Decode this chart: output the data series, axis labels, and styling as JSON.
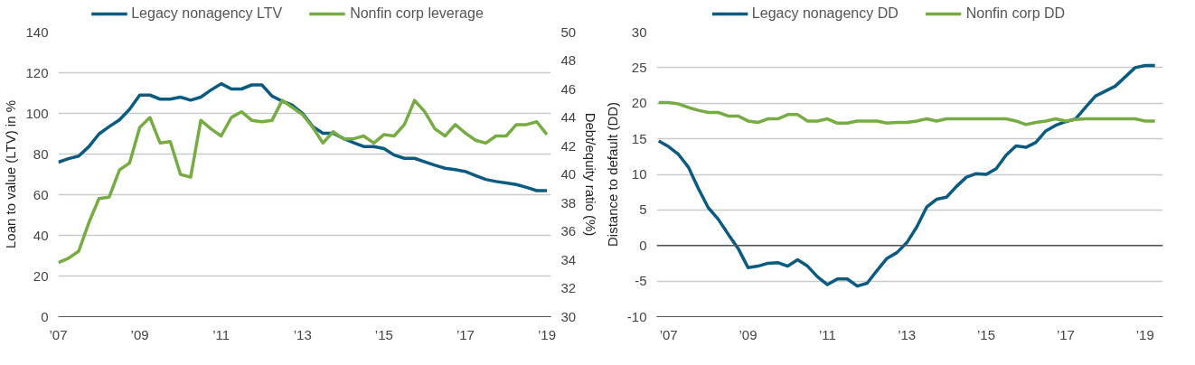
{
  "chart_data": [
    {
      "type": "line",
      "ylabel": "Loan to value (LTV) in %",
      "y2label": "Debt/equity ratio (%)",
      "legend": "top",
      "grid": "y",
      "line_style": "solid",
      "x": [
        2007,
        2007.25,
        2007.5,
        2007.75,
        2008,
        2008.25,
        2008.5,
        2008.75,
        2009,
        2009.25,
        2009.5,
        2009.75,
        2010,
        2010.25,
        2010.5,
        2010.75,
        2011,
        2011.25,
        2011.5,
        2011.75,
        2012,
        2012.25,
        2012.5,
        2012.75,
        2013,
        2013.25,
        2013.5,
        2013.75,
        2014,
        2014.25,
        2014.5,
        2014.75,
        2015,
        2015.25,
        2015.5,
        2015.75,
        2016,
        2016.25,
        2016.5,
        2016.75,
        2017,
        2017.25,
        2017.5,
        2017.75,
        2018,
        2018.25,
        2018.5,
        2018.75,
        2019
      ],
      "xlim": [
        2007,
        2019.1
      ],
      "xticks": [
        {
          "value": 2007,
          "label": "’07"
        },
        {
          "value": 2009,
          "label": "’09"
        },
        {
          "value": 2011,
          "label": "’11"
        },
        {
          "value": 2013,
          "label": "’13"
        },
        {
          "value": 2015,
          "label": "’15"
        },
        {
          "value": 2017,
          "label": "’17"
        },
        {
          "value": 2019,
          "label": "’19"
        }
      ],
      "ylim": [
        0,
        140
      ],
      "yticks": [
        0,
        20,
        40,
        60,
        80,
        100,
        120,
        140
      ],
      "y2lim": [
        30,
        50
      ],
      "y2ticks": [
        30,
        32,
        34,
        36,
        38,
        40,
        42,
        44,
        46,
        48,
        50
      ],
      "series": [
        {
          "name": "Legacy nonagency LTV",
          "color": "#0b5a80",
          "values": [
            76,
            77.7,
            79,
            83.6,
            89.9,
            93.5,
            96.8,
            102,
            109,
            109,
            107,
            107,
            108,
            106.5,
            108,
            111.5,
            114.6,
            112,
            112,
            114,
            114,
            108.5,
            106,
            104,
            100,
            93.5,
            90.2,
            90.2,
            87.7,
            85.6,
            83.7,
            83.7,
            82.7,
            79.5,
            77.9,
            77.9,
            76.2,
            74.5,
            73,
            72.3,
            71.4,
            69.4,
            67.5,
            66.5,
            65.8,
            65,
            63.6,
            62,
            62
          ]
        },
        {
          "name": "Nonfin corp leverage",
          "color": "#76ac43",
          "axis": "y2",
          "values": [
            33.8,
            34.1,
            34.6,
            36.6,
            38.3,
            38.4,
            40.3,
            40.8,
            43.3,
            44.0,
            42.2,
            42.3,
            40.0,
            39.8,
            43.8,
            43.2,
            42.7,
            44.0,
            44.4,
            43.8,
            43.7,
            43.8,
            45.2,
            44.7,
            44.2,
            43.3,
            42.2,
            43.0,
            42.5,
            42.5,
            42.7,
            42.2,
            42.8,
            42.7,
            43.5,
            45.2,
            44.4,
            43.2,
            42.7,
            43.5,
            42.9,
            42.4,
            42.2,
            42.7,
            42.7,
            43.5,
            43.5,
            43.7,
            42.8
          ]
        }
      ]
    },
    {
      "type": "line",
      "ylabel": "Distance to default (DD)",
      "legend": "top",
      "grid": "y",
      "line_style": "solid",
      "x": [
        2006.75,
        2007,
        2007.25,
        2007.5,
        2007.75,
        2008,
        2008.25,
        2008.5,
        2008.75,
        2009,
        2009.25,
        2009.5,
        2009.75,
        2010,
        2010.25,
        2010.5,
        2010.75,
        2011,
        2011.25,
        2011.5,
        2011.75,
        2012,
        2012.25,
        2012.5,
        2012.75,
        2013,
        2013.25,
        2013.5,
        2013.75,
        2014,
        2014.25,
        2014.5,
        2014.75,
        2015,
        2015.25,
        2015.5,
        2015.75,
        2016,
        2016.25,
        2016.5,
        2016.75,
        2017,
        2017.25,
        2017.5,
        2017.75,
        2018,
        2018.25,
        2018.5,
        2018.75,
        2019,
        2019.25
      ],
      "xlim": [
        2006.7,
        2019.45
      ],
      "xticks": [
        {
          "value": 2007,
          "label": "’07"
        },
        {
          "value": 2009,
          "label": "’09"
        },
        {
          "value": 2011,
          "label": "’11"
        },
        {
          "value": 2013,
          "label": "’13"
        },
        {
          "value": 2015,
          "label": "’15"
        },
        {
          "value": 2017,
          "label": "’17"
        },
        {
          "value": 2019,
          "label": "’19"
        }
      ],
      "ylim": [
        -10,
        30
      ],
      "yticks": [
        -10,
        -5,
        0,
        5,
        10,
        15,
        20,
        25,
        30
      ],
      "ref_lines": [
        {
          "axis": "y",
          "value": 0,
          "color": "#555555"
        }
      ],
      "series": [
        {
          "name": "Legacy nonagency DD",
          "color": "#0b5a80",
          "values": [
            14.7,
            13.9,
            12.8,
            11.0,
            8.0,
            5.3,
            3.7,
            1.6,
            -0.4,
            -3.1,
            -2.9,
            -2.5,
            -2.4,
            -2.9,
            -2.0,
            -2.9,
            -4.4,
            -5.5,
            -4.7,
            -4.7,
            -5.7,
            -5.3,
            -3.5,
            -1.8,
            -1.0,
            0.4,
            2.6,
            5.4,
            6.5,
            6.8,
            8.3,
            9.6,
            10.1,
            10.0,
            10.8,
            12.7,
            14.0,
            13.8,
            14.5,
            16.1,
            16.9,
            17.4,
            17.8,
            19.4,
            21.0,
            21.7,
            22.4,
            23.7,
            25.0,
            25.3,
            25.3
          ]
        },
        {
          "name": "Nonfin corp DD",
          "color": "#76ac43",
          "values": [
            20.1,
            20.1,
            19.9,
            19.4,
            19.0,
            18.7,
            18.7,
            18.2,
            18.2,
            17.5,
            17.3,
            17.8,
            17.8,
            18.4,
            18.4,
            17.5,
            17.5,
            17.8,
            17.2,
            17.2,
            17.5,
            17.5,
            17.5,
            17.2,
            17.3,
            17.3,
            17.5,
            17.8,
            17.5,
            17.8,
            17.8,
            17.8,
            17.8,
            17.8,
            17.8,
            17.8,
            17.5,
            17.0,
            17.3,
            17.5,
            17.8,
            17.5,
            17.7,
            17.8,
            17.8,
            17.8,
            17.8,
            17.8,
            17.8,
            17.5,
            17.5
          ]
        }
      ]
    }
  ]
}
